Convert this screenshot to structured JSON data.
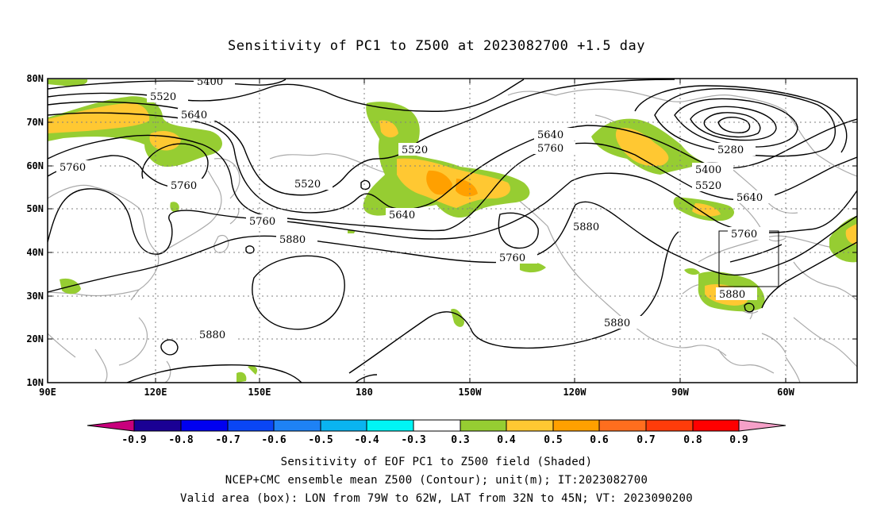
{
  "title": "Sensitivity of PC1 to Z500 at 2023082700 +1.5 day",
  "lat_ticks": [
    "80N",
    "70N",
    "60N",
    "50N",
    "40N",
    "30N",
    "20N",
    "10N"
  ],
  "lon_ticks": [
    "90E",
    "120E",
    "150E",
    "180",
    "150W",
    "120W",
    "90W",
    "60W"
  ],
  "contour_labels": [
    "5400",
    "5520",
    "5640",
    "5760",
    "5760",
    "5520",
    "5520",
    "5640",
    "5640",
    "5760",
    "5760",
    "5880",
    "5760",
    "5880",
    "5880",
    "5280",
    "5400",
    "5520",
    "5640",
    "5760",
    "5880",
    "5880"
  ],
  "colorbar": {
    "labels": [
      "-0.9",
      "-0.8",
      "-0.7",
      "-0.6",
      "-0.5",
      "-0.4",
      "-0.3",
      "0.3",
      "0.4",
      "0.5",
      "0.6",
      "0.7",
      "0.8",
      "0.9"
    ],
    "colors": [
      "#c8007c",
      "#1a0094",
      "#0000f0",
      "#0a46f5",
      "#1e82f5",
      "#0ab4f0",
      "#00f5f5",
      "#ffffff",
      "#96cd32",
      "#ffc832",
      "#ffa000",
      "#ff6e1e",
      "#ff3c0a",
      "#ff0000",
      "#f5a0c8"
    ]
  },
  "footer": {
    "line1": "Sensitivity of EOF PC1 to Z500 field (Shaded)",
    "line2": "NCEP+CMC ensemble mean Z500 (Contour); unit(m); IT:2023082700",
    "line3": "Valid area (box): LON from 79W to 62W, LAT from 32N to 45N; VT: 2023090200"
  }
}
